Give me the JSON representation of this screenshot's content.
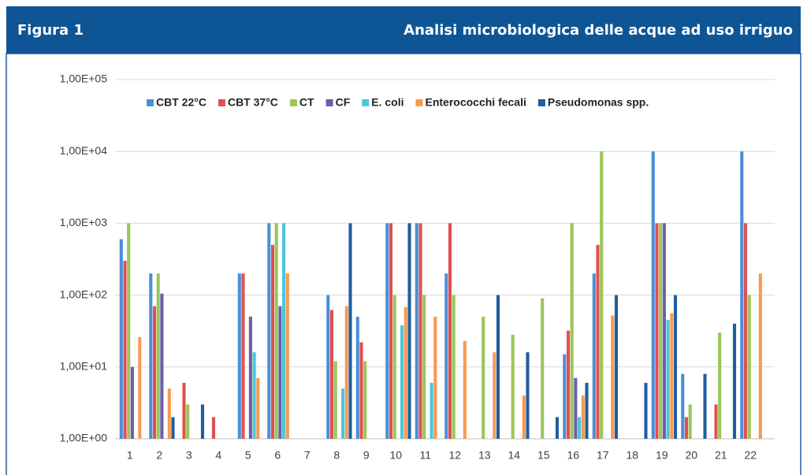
{
  "header": {
    "label": "Figura 1",
    "title": "Analisi microbiologica delle acque ad uso irriguo"
  },
  "chart_data": {
    "type": "bar",
    "log_scale": true,
    "grid": true,
    "legend": "top",
    "categories": [
      "1",
      "2",
      "3",
      "4",
      "5",
      "6",
      "7",
      "8",
      "9",
      "10",
      "11",
      "12",
      "13",
      "14",
      "15",
      "16",
      "17",
      "18",
      "19",
      "20",
      "21",
      "22"
    ],
    "series": [
      {
        "name": "CBT 22°C",
        "color": "#4a8fd6",
        "values": [
          600,
          200,
          null,
          null,
          200,
          1000,
          null,
          100,
          50,
          1000,
          1000,
          200,
          null,
          null,
          null,
          15,
          200,
          null,
          10000,
          8,
          null,
          10000
        ]
      },
      {
        "name": "CBT 37°C",
        "color": "#e05050",
        "values": [
          300,
          70,
          6,
          2,
          200,
          500,
          null,
          62,
          22,
          1000,
          1000,
          1000,
          null,
          null,
          null,
          32,
          500,
          null,
          1000,
          2,
          3,
          1000
        ]
      },
      {
        "name": "CT",
        "color": "#9cc55a",
        "values": [
          1000,
          200,
          3,
          null,
          null,
          1000,
          null,
          12,
          12,
          100,
          100,
          100,
          50,
          28,
          90,
          1000,
          10000,
          null,
          1000,
          3,
          30,
          100
        ]
      },
      {
        "name": "CF",
        "color": "#6b5fa8",
        "values": [
          10,
          105,
          null,
          null,
          50,
          70,
          null,
          null,
          null,
          null,
          null,
          null,
          null,
          null,
          null,
          7,
          null,
          null,
          1000,
          null,
          null,
          null
        ]
      },
      {
        "name": "E. coli",
        "color": "#4bc6da",
        "values": [
          null,
          null,
          null,
          null,
          16,
          1000,
          null,
          5,
          null,
          38,
          6,
          null,
          null,
          null,
          null,
          2,
          null,
          null,
          45,
          null,
          null,
          null
        ]
      },
      {
        "name": "Enterococchi fecali",
        "color": "#f79a50",
        "values": [
          26,
          5,
          null,
          null,
          7,
          200,
          null,
          70,
          null,
          68,
          50,
          23,
          16,
          4,
          null,
          4,
          52,
          null,
          56,
          null,
          null,
          200
        ]
      },
      {
        "name": "Pseudomonas spp.",
        "color": "#1f5e9e",
        "values": [
          null,
          2,
          3,
          null,
          null,
          null,
          null,
          1000,
          null,
          1000,
          null,
          null,
          100,
          16,
          2,
          6,
          100,
          6,
          100,
          8,
          40,
          null
        ]
      }
    ],
    "ylim": [
      1,
      100000
    ],
    "yticks": [
      {
        "value": 1,
        "label": "1,00E+00"
      },
      {
        "value": 10,
        "label": "1,00E+01"
      },
      {
        "value": 100,
        "label": "1,00E+02"
      },
      {
        "value": 1000,
        "label": "1,00E+03"
      },
      {
        "value": 10000,
        "label": "1,00E+04"
      },
      {
        "value": 100000,
        "label": "1,00E+05"
      }
    ]
  }
}
